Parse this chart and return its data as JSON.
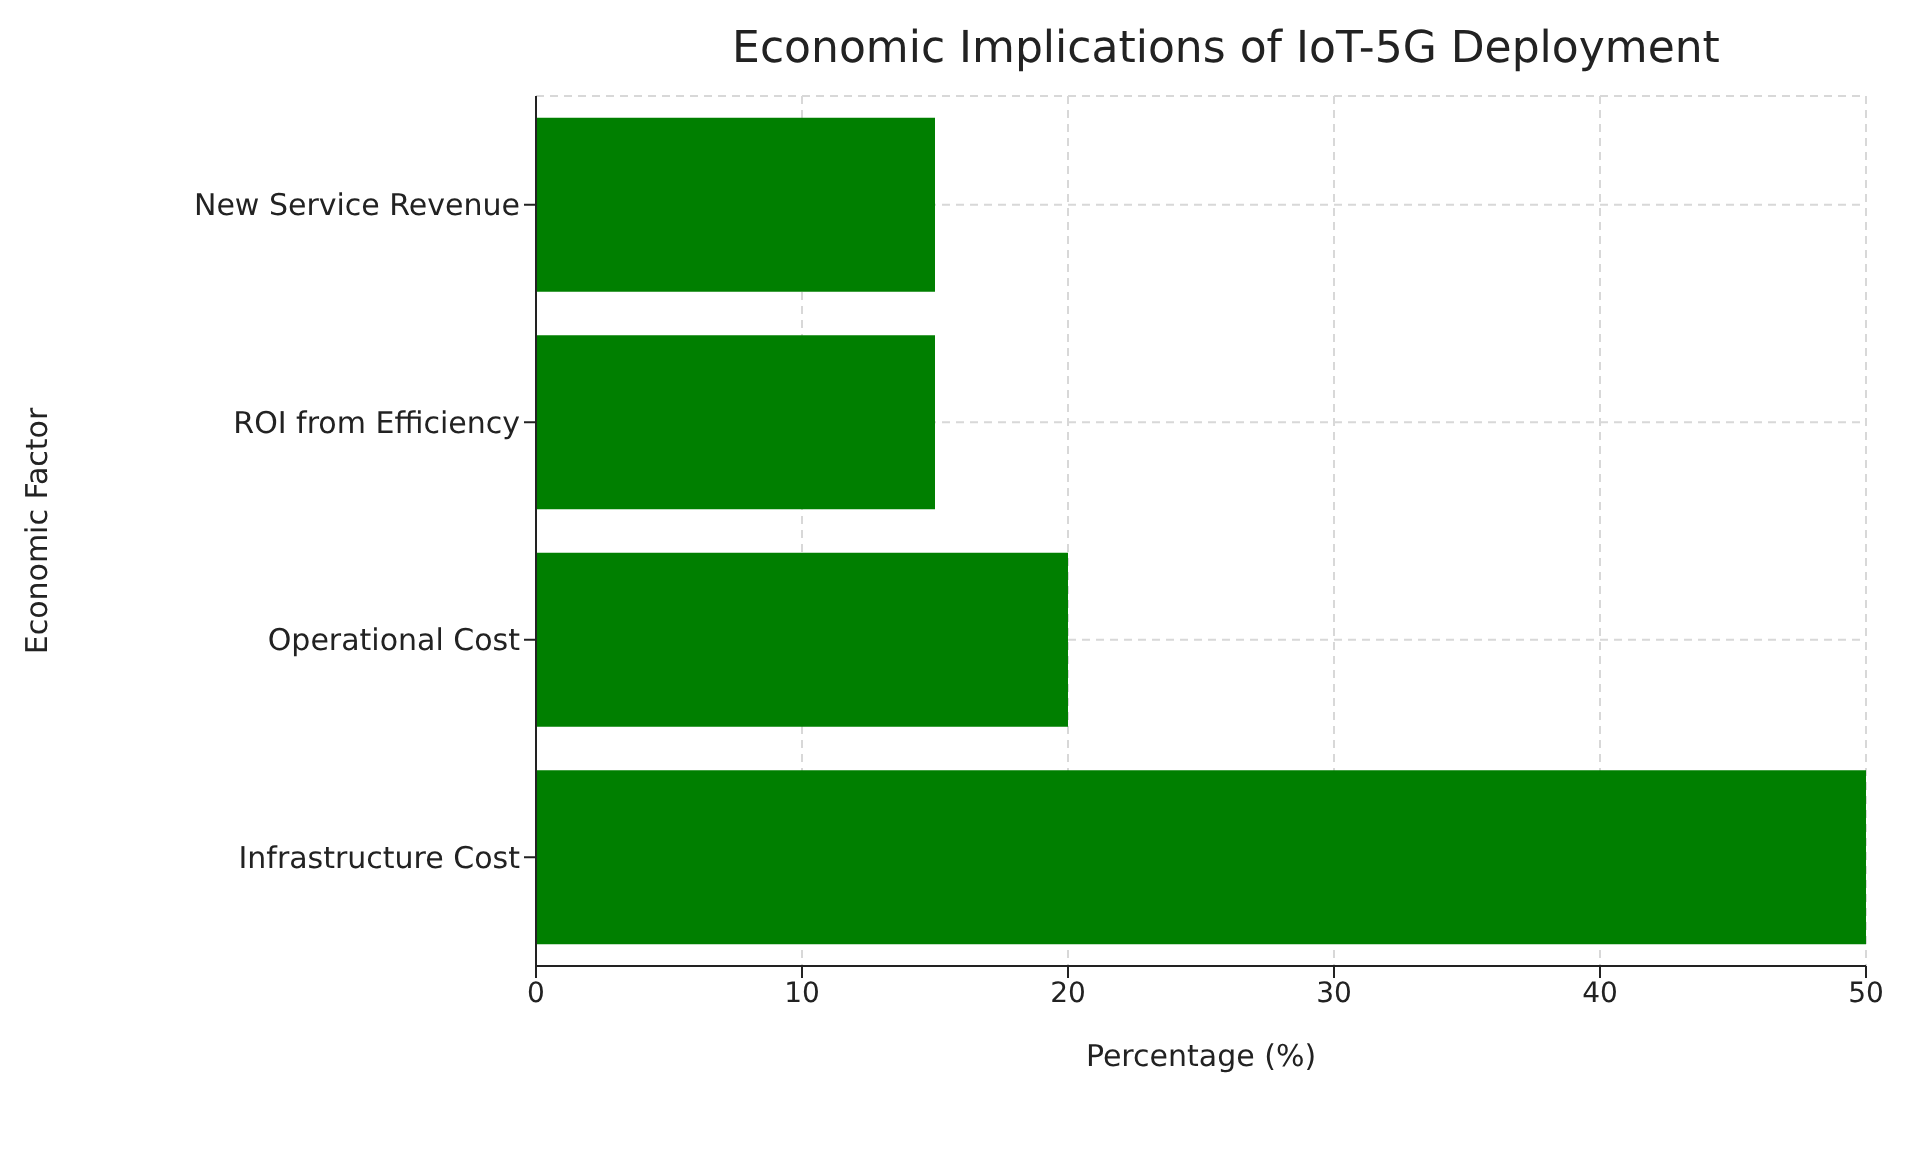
{
  "chart_data": {
    "type": "bar",
    "orientation": "horizontal",
    "title": "Economic Implications of IoT-5G Deployment",
    "xlabel": "Percentage (%)",
    "ylabel": "Economic Factor",
    "categories": [
      "New Service Revenue",
      "ROI from Efficiency",
      "Operational Cost",
      "Infrastructure Cost"
    ],
    "values": [
      15,
      15,
      20,
      50
    ],
    "color": "#007f00",
    "xlim": [
      0,
      50
    ],
    "xticks": [
      0,
      10,
      20,
      30,
      40,
      50
    ],
    "grid": true
  }
}
